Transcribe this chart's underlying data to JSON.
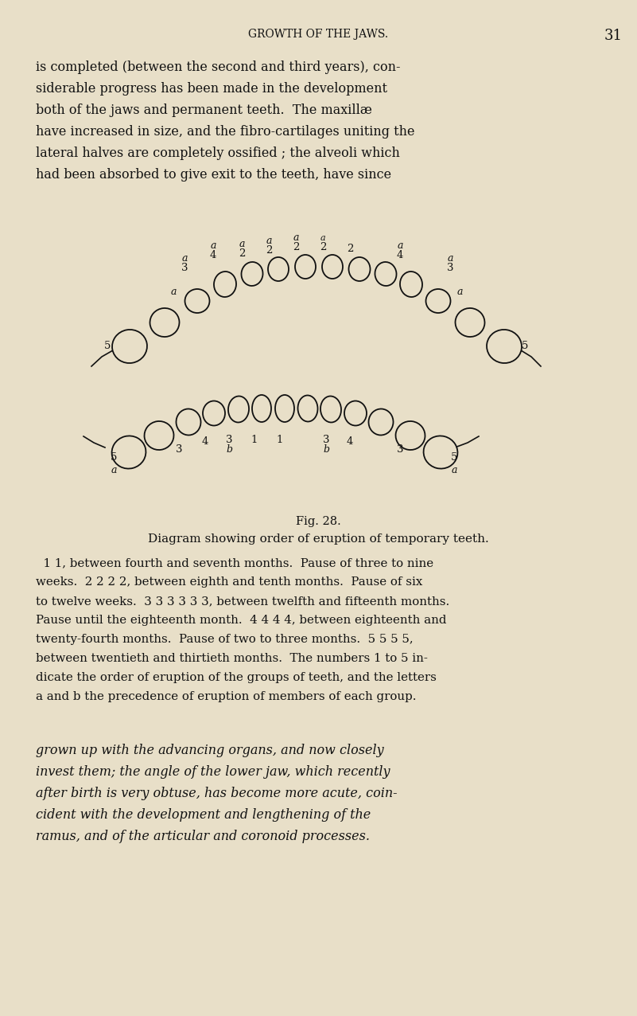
{
  "bg_color": "#e8dfc8",
  "text_color": "#111111",
  "header_title": "GROWTH OF THE JAWS.",
  "header_page": "31",
  "top_paragraph_lines": [
    "is completed (between the second and third years), con-",
    "siderable progress has been made in the development",
    "both of the jaws and permanent teeth.  The maxillæ",
    "have increased in size, and the fibro-cartilages uniting the",
    "lateral halves are completely ossified ; the alveoli which",
    "had been absorbed to give exit to the teeth, have since"
  ],
  "fig_caption": "Fig. 28.",
  "fig_title": "Diagram showing order of eruption of temporary teeth.",
  "caption_lines": [
    "  1 1, between fourth and seventh months.  Pause of three to nine",
    "weeks.  2 2 2 2, between eighth and tenth months.  Pause of six",
    "to twelve weeks.  3 3 3 3 3 3, between twelfth and fifteenth months.",
    "Pause until the eighteenth month.  4 4 4 4, between eighteenth and",
    "twenty-fourth months.  Pause of two to three months.  5 5 5 5,",
    "between twentieth and thirtieth months.  The numbers 1 to 5 in-",
    "dicate the order of eruption of the groups of teeth, and the letters",
    "a and b the precedence of eruption of members of each group."
  ],
  "bottom_paragraph_lines": [
    "grown up with the advancing organs, and now closely",
    "invest them; the angle of the lower jaw, which recently",
    "after birth is very obtuse, has become more acute, coin-",
    "cident with the development and lengthening of the",
    "ramus, and of the articular and coronoid processes."
  ],
  "upper_jaw_teeth": [
    [
      163,
      435,
      44,
      42,
      -10
    ],
    [
      207,
      405,
      37,
      36,
      -5
    ],
    [
      248,
      378,
      31,
      30,
      0
    ],
    [
      283,
      357,
      28,
      32,
      5
    ],
    [
      317,
      344,
      27,
      30,
      7
    ],
    [
      350,
      338,
      26,
      30,
      0
    ],
    [
      384,
      335,
      26,
      30,
      0
    ],
    [
      418,
      335,
      26,
      30,
      0
    ],
    [
      452,
      338,
      27,
      30,
      0
    ],
    [
      485,
      344,
      27,
      30,
      -7
    ],
    [
      517,
      357,
      28,
      32,
      -5
    ],
    [
      551,
      378,
      31,
      30,
      0
    ],
    [
      591,
      405,
      37,
      36,
      5
    ],
    [
      634,
      435,
      44,
      42,
      10
    ]
  ],
  "lower_jaw_teeth": [
    [
      162,
      568,
      43,
      41,
      -15
    ],
    [
      200,
      547,
      37,
      36,
      -8
    ],
    [
      237,
      530,
      31,
      33,
      -4
    ],
    [
      269,
      519,
      28,
      31,
      0
    ],
    [
      300,
      514,
      26,
      33,
      4
    ],
    [
      329,
      513,
      24,
      34,
      0
    ],
    [
      358,
      513,
      24,
      34,
      0
    ],
    [
      387,
      513,
      25,
      33,
      -2
    ],
    [
      416,
      514,
      26,
      33,
      -4
    ],
    [
      447,
      519,
      28,
      31,
      -1
    ],
    [
      479,
      530,
      31,
      33,
      4
    ],
    [
      516,
      547,
      37,
      36,
      8
    ],
    [
      554,
      568,
      43,
      41,
      15
    ]
  ]
}
